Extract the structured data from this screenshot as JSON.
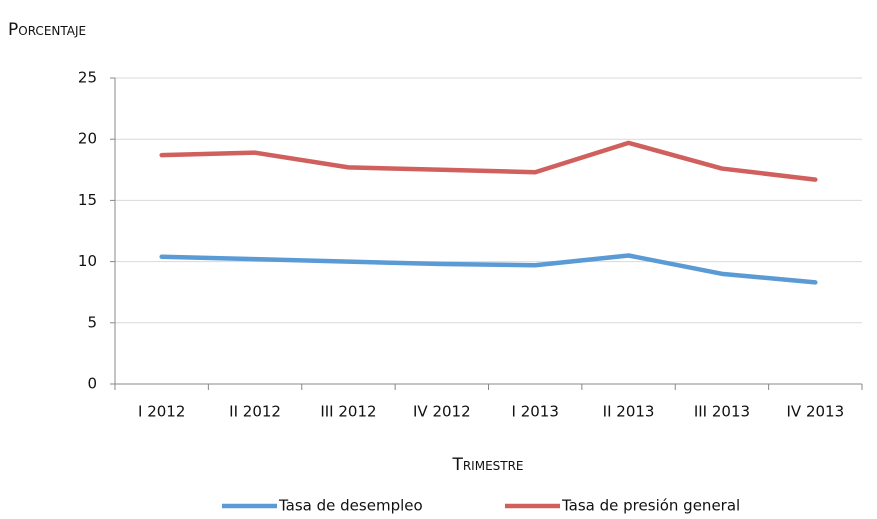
{
  "chart_data": {
    "type": "line",
    "y_label": "Porcentaje",
    "x_label": "Trimestre",
    "categories": [
      "I 2012",
      "II 2012",
      "III 2012",
      "IV 2012",
      "I 2013",
      "II 2013",
      "III 2013",
      "IV 2013"
    ],
    "series": [
      {
        "name": "Tasa de desempleo",
        "color": "#5b9bd5",
        "values": [
          10.4,
          10.2,
          10.0,
          9.8,
          9.7,
          10.5,
          9.0,
          8.3
        ]
      },
      {
        "name": "Tasa de presión general",
        "color": "#d0605e",
        "values": [
          18.7,
          18.9,
          17.7,
          17.5,
          17.3,
          19.7,
          17.6,
          16.7
        ]
      }
    ],
    "ylim": [
      0,
      25
    ],
    "yticks": [
      0,
      5,
      10,
      15,
      20,
      25
    ],
    "grid": true,
    "legend": "bottom"
  }
}
